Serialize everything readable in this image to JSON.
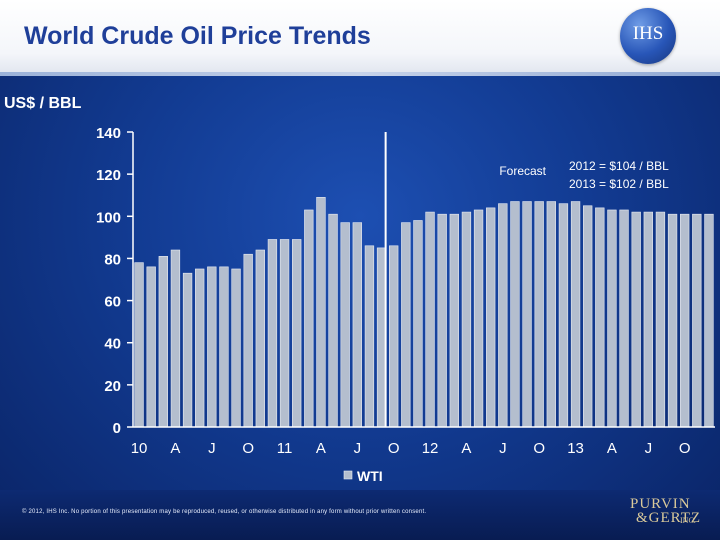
{
  "header": {
    "title": "World Crude Oil Price Trends",
    "logo_text": "IHS"
  },
  "footer": {
    "copyright": "© 2012, IHS Inc. No portion of this presentation may be reproduced, reused, or otherwise distributed in any form without prior written consent.",
    "partner_logo_line1": "PURVIN",
    "partner_logo_line2": "&GERTZ",
    "partner_logo_line3": "INC."
  },
  "colors": {
    "bar": "#b4bece",
    "bar_edge": "#e6ebf3",
    "axis": "#ffffff",
    "text": "#ffffff"
  },
  "chart_data": {
    "type": "bar",
    "unit_label": "US$ / BBL",
    "ylim": [
      0,
      140
    ],
    "yticks": [
      0,
      20,
      40,
      60,
      80,
      100,
      120,
      140
    ],
    "x_tick_labels": [
      "10",
      "A",
      "J",
      "O",
      "11",
      "A",
      "J",
      "O",
      "12",
      "A",
      "J",
      "O",
      "13",
      "A",
      "J",
      "O"
    ],
    "series": [
      {
        "name": "WTI",
        "values": [
          78,
          76,
          81,
          84,
          73,
          75,
          76,
          76,
          75,
          82,
          84,
          89,
          89,
          89,
          103,
          109,
          101,
          97,
          97,
          86,
          85,
          86,
          97,
          98,
          102,
          101,
          101,
          102,
          103,
          104,
          106,
          107,
          107,
          107,
          107,
          106,
          107,
          105,
          104,
          103,
          103,
          102,
          102,
          102,
          101,
          101,
          101,
          101
        ]
      }
    ],
    "forecast_start_index": 21,
    "annotations": [
      "Forecast",
      "2012 = $104 / BBL",
      "2013 = $102 / BBL"
    ],
    "legend": "bottom-center"
  }
}
